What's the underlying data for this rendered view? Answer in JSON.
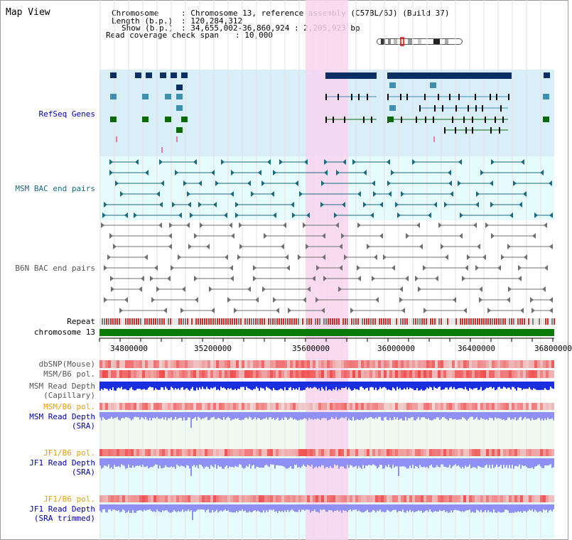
{
  "header": {
    "title": "Map View",
    "chromosome_key": "Chromosome",
    "chromosome_val": ": Chromosome 13, reference assembly (C57BL/6J) (Build 37)",
    "length_key": "Length (b.p.)",
    "length_val": ": 120,284,312",
    "show_key": "Show (b.p.)",
    "show_val": ": 34,655,002-36,860,924 : 2,205,923 bp",
    "coverage_key": "Read coverage check span",
    "coverage_val": ": 10,000"
  },
  "tracks": {
    "refseq": "RefSeq Genes",
    "msm_bac": "MSM BAC end pairs",
    "b6n_bac": "B6N BAC end pairs",
    "repeat": "Repeat",
    "chromosome": "chromosome 13",
    "dbsnp": "dbSNP(Mouse)",
    "msm_b6_pol_1": "MSM/B6 pol.",
    "msm_read_depth_cap_1": "MSM Read Depth",
    "msm_read_depth_cap_2": "(Capillary)",
    "msm_b6_pol_2": "MSM/B6 pol.",
    "msm_read_depth_sra_1": "MSM Read Depth",
    "msm_read_depth_sra_2": "(SRA)",
    "jf1_b6_pol_1": "JF1/B6 pol.",
    "jf1_read_depth_sra_1": "JF1 Read Depth",
    "jf1_read_depth_sra_2": "(SRA)",
    "jf1_b6_pol_2": "JF1/B6 pol.",
    "jf1_read_depth_trim_1": "JF1 Read Depth",
    "jf1_read_depth_trim_2": "(SRA trimmed)"
  },
  "axis": {
    "ticks": [
      "34800000",
      "35200000",
      "35600000",
      "36000000",
      "36400000",
      "36800000"
    ]
  },
  "colors": {
    "refseq_bg": "#d8eef9",
    "bac_bg": "#e6fbfb",
    "highlight": "#f7d4ee",
    "gene_dark": "#0b2f63",
    "gene_mid": "#3f8fb0",
    "gene_green": "#0a6a0a",
    "msm_bac": "#1a6a80",
    "b6n_bac": "#707070",
    "chromosome": "#0a7a0a",
    "depth_blue": "#1a2ee0",
    "depth_light": "#8f8ff5",
    "label_blue": "#0000aa",
    "label_orange": "#e8a000",
    "label_teal": "#1a6a80",
    "label_gray": "#555555"
  }
}
